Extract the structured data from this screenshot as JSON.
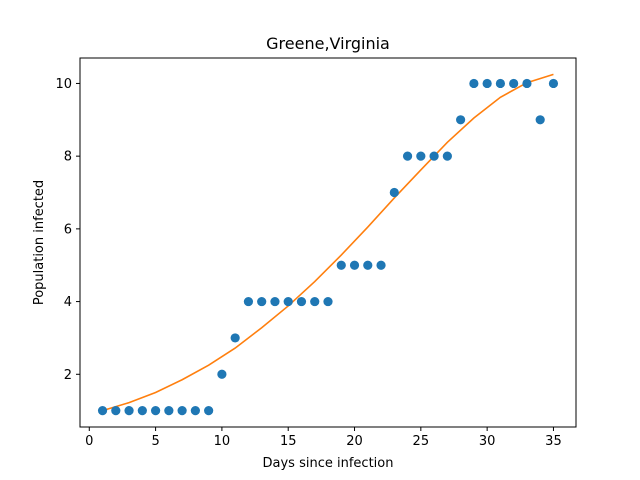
{
  "chart_data": {
    "type": "scatter",
    "title": "Greene,Virginia",
    "xlabel": "Days since infection",
    "ylabel": "Population infected",
    "xlim": [
      -0.7,
      36.7
    ],
    "ylim": [
      0.55,
      10.7
    ],
    "xticks": [
      0,
      5,
      10,
      15,
      20,
      25,
      30,
      35
    ],
    "yticks": [
      2,
      4,
      6,
      8,
      10
    ],
    "grid": false,
    "series": [
      {
        "kind": "points",
        "color": "#1f77b4",
        "x": [
          1,
          2,
          3,
          4,
          5,
          6,
          7,
          8,
          9,
          10,
          11,
          12,
          13,
          14,
          15,
          16,
          17,
          18,
          19,
          20,
          21,
          22,
          23,
          24,
          25,
          26,
          27,
          28,
          29,
          30,
          31,
          32,
          33,
          34,
          35
        ],
        "y": [
          1,
          1,
          1,
          1,
          1,
          1,
          1,
          1,
          1,
          2,
          3,
          4,
          4,
          4,
          4,
          4,
          4,
          4,
          5,
          5,
          5,
          5,
          7,
          8,
          8,
          8,
          8,
          9,
          10,
          10,
          10,
          10,
          10,
          9,
          10
        ]
      },
      {
        "kind": "fit-line",
        "color": "#ff7f0e",
        "x": [
          1,
          3,
          5,
          7,
          9,
          11,
          13,
          15,
          17,
          19,
          21,
          23,
          25,
          27,
          29,
          31,
          33,
          35
        ],
        "y": [
          1.0,
          1.22,
          1.5,
          1.85,
          2.25,
          2.72,
          3.28,
          3.88,
          4.55,
          5.28,
          6.05,
          6.85,
          7.62,
          8.38,
          9.05,
          9.62,
          10.02,
          10.25
        ]
      }
    ]
  }
}
